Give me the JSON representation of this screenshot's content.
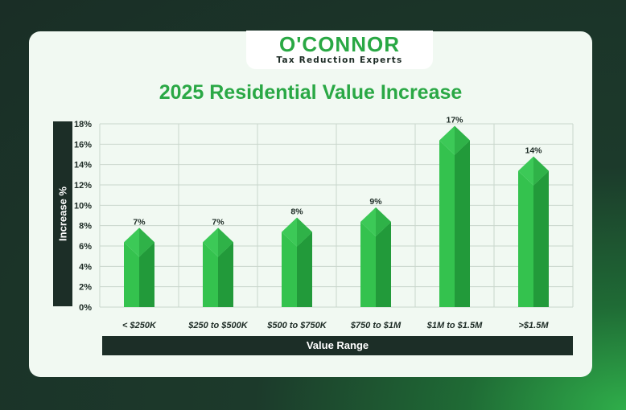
{
  "brand": {
    "name": "O'CONNOR",
    "tagline": "Tax Reduction Experts"
  },
  "colors": {
    "accent": "#29a844",
    "bar_light": "#34c24e",
    "bar_dark": "#229a3a",
    "label_box": "#1c2e27"
  },
  "chart_data": {
    "type": "bar",
    "title": "2025 Residential Value Increase",
    "xlabel": "Value Range",
    "ylabel": "Increase %",
    "categories": [
      "< $250K",
      "$250 to $500K",
      "$500 to $750K",
      "$750 to $1M",
      "$1M to $1.5M",
      ">$1.5M"
    ],
    "values": [
      7,
      7,
      8,
      9,
      17,
      14
    ],
    "data_labels": [
      "7%",
      "7%",
      "8%",
      "9%",
      "17%",
      "14%"
    ],
    "ylim": [
      0,
      18
    ],
    "yticks": [
      0,
      2,
      4,
      6,
      8,
      10,
      12,
      14,
      16,
      18
    ],
    "ytick_labels": [
      "0%",
      "2%",
      "4%",
      "6%",
      "8%",
      "10%",
      "12%",
      "14%",
      "16%",
      "18%"
    ],
    "grid": true
  }
}
